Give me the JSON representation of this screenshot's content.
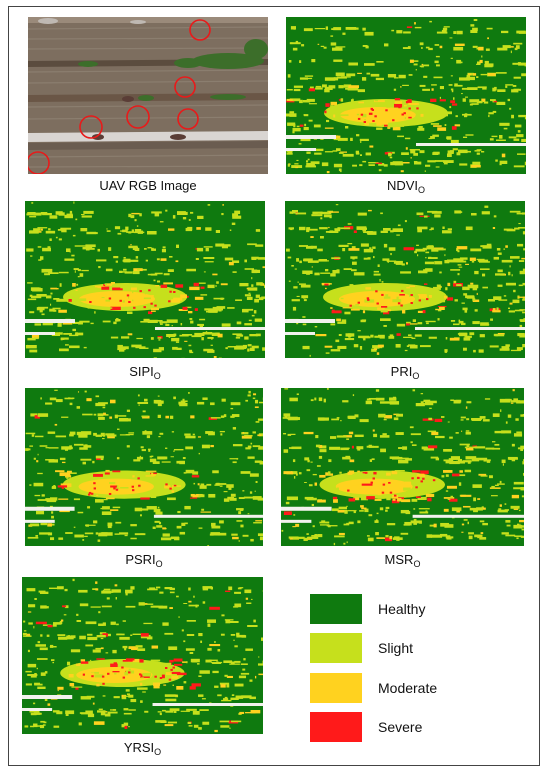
{
  "figure": {
    "panels": [
      {
        "id": "rgb",
        "name": "UAV RGB Image",
        "subscript": ""
      },
      {
        "id": "ndvi",
        "name": "NDVI",
        "subscript": "O"
      },
      {
        "id": "sipi",
        "name": "SIPI",
        "subscript": "O"
      },
      {
        "id": "pri",
        "name": "PRI",
        "subscript": "O"
      },
      {
        "id": "psri",
        "name": "PSRI",
        "subscript": "O"
      },
      {
        "id": "msr",
        "name": "MSR",
        "subscript": "O"
      },
      {
        "id": "yrsi",
        "name": "YRSI",
        "subscript": "O"
      }
    ],
    "legend": [
      {
        "label": "Healthy",
        "color": "#0f7a0f"
      },
      {
        "label": "Slight",
        "color": "#c6e01c"
      },
      {
        "label": "Moderate",
        "color": "#ffd21f"
      },
      {
        "label": "Severe",
        "color": "#ff1a1a"
      }
    ],
    "marker_color": "#e81a1a"
  }
}
